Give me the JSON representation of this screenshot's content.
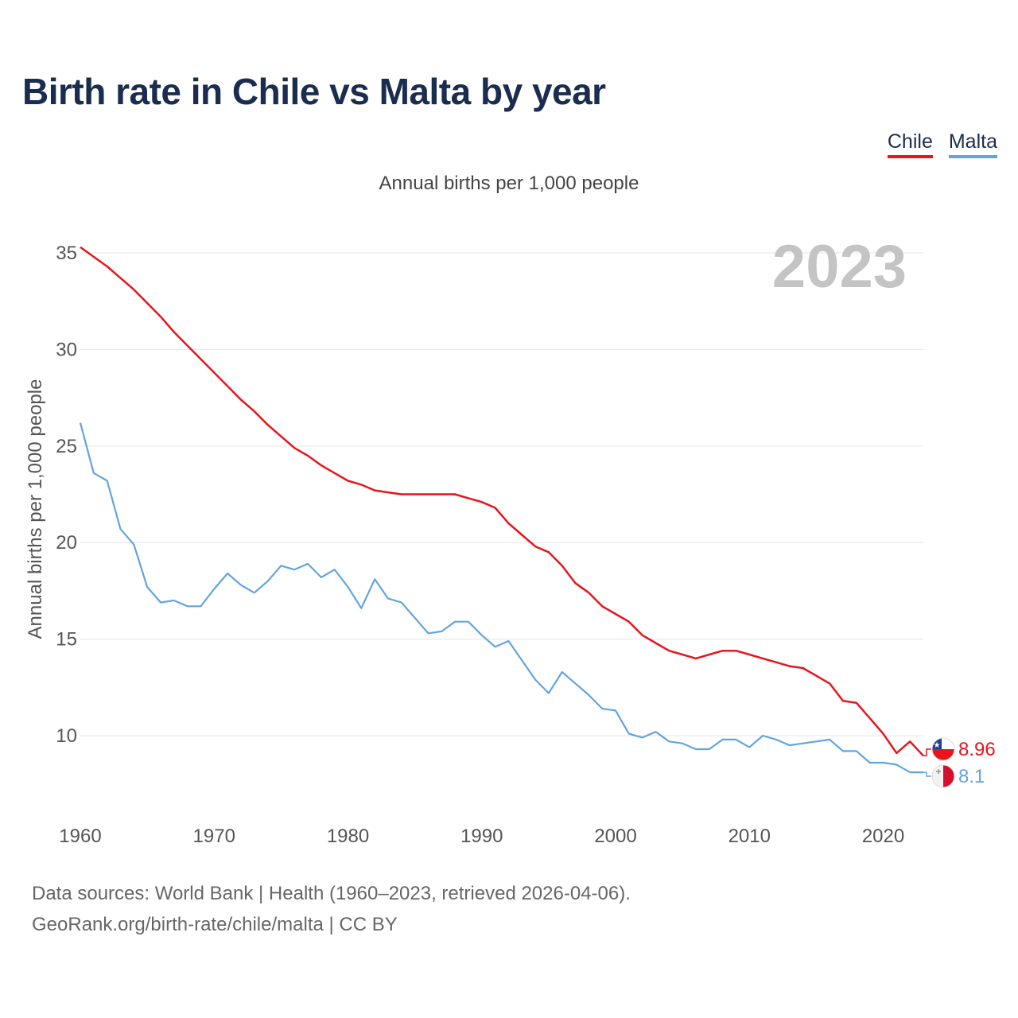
{
  "title": "Birth rate in Chile vs Malta by year",
  "legend": {
    "chile": "Chile",
    "malta": "Malta"
  },
  "subtitle": "Annual births per 1,000 people",
  "year_label": "2023",
  "colors": {
    "chile": "#e8151b",
    "malta": "#62a4e2",
    "title": "#1b2d4f",
    "grid": "#e6e6e6",
    "year": "#c4c4c4"
  },
  "end_labels": {
    "chile": "8.96",
    "malta": "8.1"
  },
  "footer": {
    "line1": "Data sources: World Bank | Health (1960–2023, retrieved 2026-04-06).",
    "line2": "GeoRank.org/birth-rate/chile/malta | CC BY"
  },
  "chart_data": {
    "type": "line",
    "title": "Birth rate in Chile vs Malta by year",
    "ylabel": "Annual births per 1,000 people",
    "xlabel": "",
    "xlim": [
      1960,
      2023
    ],
    "ylim": [
      7,
      36
    ],
    "yticks": [
      10,
      15,
      20,
      25,
      30,
      35
    ],
    "xticks": [
      1960,
      1970,
      1980,
      1990,
      2000,
      2010,
      2020
    ],
    "grid": true,
    "legend_position": "top-right",
    "x": [
      1960,
      1961,
      1962,
      1963,
      1964,
      1965,
      1966,
      1967,
      1968,
      1969,
      1970,
      1971,
      1972,
      1973,
      1974,
      1975,
      1976,
      1977,
      1978,
      1979,
      1980,
      1981,
      1982,
      1983,
      1984,
      1985,
      1986,
      1987,
      1988,
      1989,
      1990,
      1991,
      1992,
      1993,
      1994,
      1995,
      1996,
      1997,
      1998,
      1999,
      2000,
      2001,
      2002,
      2003,
      2004,
      2005,
      2006,
      2007,
      2008,
      2009,
      2010,
      2011,
      2012,
      2013,
      2014,
      2015,
      2016,
      2017,
      2018,
      2019,
      2020,
      2021,
      2022,
      2023
    ],
    "series": [
      {
        "name": "Chile",
        "values": [
          35.3,
          34.8,
          34.3,
          33.7,
          33.1,
          32.4,
          31.7,
          30.9,
          30.2,
          29.5,
          28.8,
          28.1,
          27.4,
          26.8,
          26.1,
          25.5,
          24.9,
          24.5,
          24.0,
          23.6,
          23.2,
          23.0,
          22.7,
          22.6,
          22.5,
          22.5,
          22.5,
          22.5,
          22.5,
          22.3,
          22.1,
          21.8,
          21.0,
          20.4,
          19.8,
          19.5,
          18.8,
          17.9,
          17.4,
          16.7,
          16.3,
          15.9,
          15.2,
          14.8,
          14.4,
          14.2,
          14.0,
          14.2,
          14.4,
          14.4,
          14.2,
          14.0,
          13.8,
          13.6,
          13.5,
          13.1,
          12.7,
          11.8,
          11.7,
          10.9,
          10.1,
          9.1,
          9.7,
          8.96
        ]
      },
      {
        "name": "Malta",
        "values": [
          26.2,
          23.6,
          23.2,
          20.7,
          19.9,
          17.7,
          16.9,
          17.0,
          16.7,
          16.7,
          17.6,
          18.4,
          17.8,
          17.4,
          18.0,
          18.8,
          18.6,
          18.9,
          18.2,
          18.6,
          17.7,
          16.6,
          18.1,
          17.1,
          16.9,
          16.1,
          15.3,
          15.4,
          15.9,
          15.9,
          15.2,
          14.6,
          14.9,
          13.9,
          12.9,
          12.2,
          13.3,
          12.7,
          12.1,
          11.4,
          11.3,
          10.1,
          9.9,
          10.2,
          9.7,
          9.6,
          9.3,
          9.3,
          9.8,
          9.8,
          9.4,
          10.0,
          9.8,
          9.5,
          9.6,
          9.7,
          9.8,
          9.2,
          9.2,
          8.6,
          8.6,
          8.5,
          8.1,
          8.1
        ]
      }
    ]
  }
}
